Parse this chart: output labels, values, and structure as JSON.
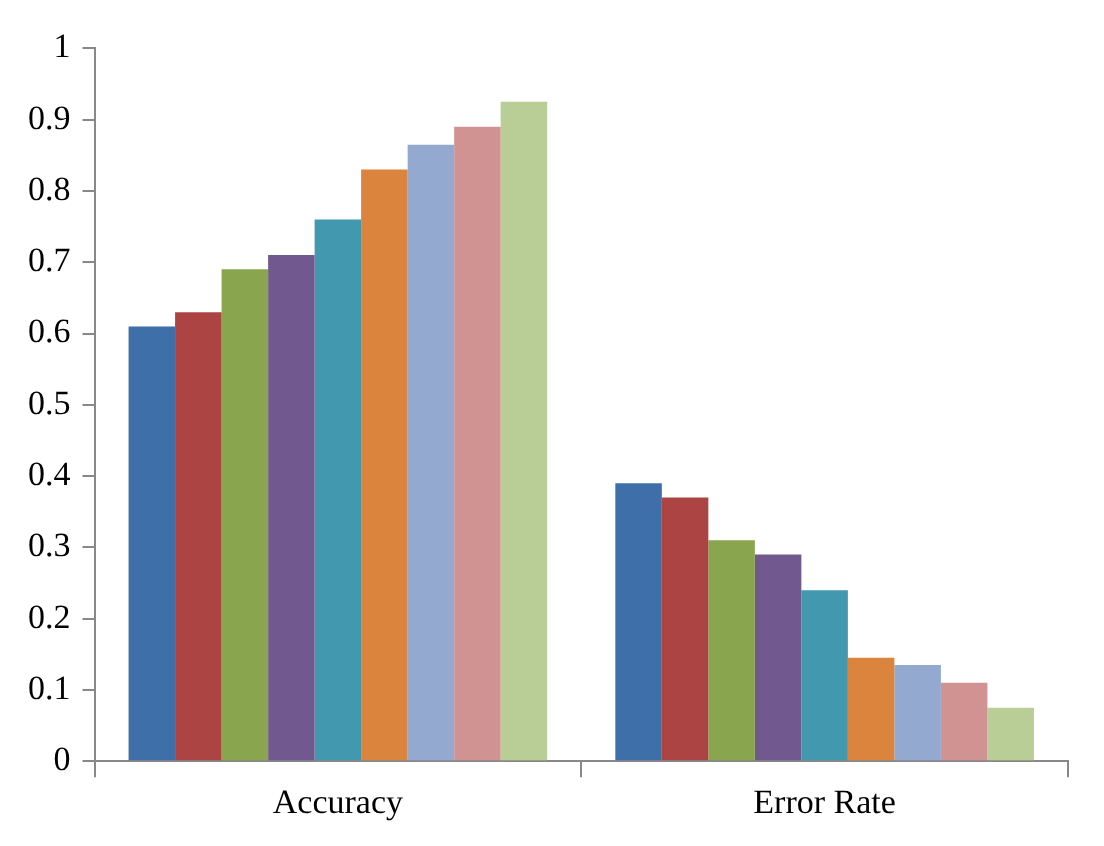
{
  "chart_data": {
    "type": "bar",
    "categories": [
      "Accuracy",
      "Error Rate"
    ],
    "series": [
      {
        "color": "#3e6fa8",
        "values": [
          0.61,
          0.39
        ]
      },
      {
        "color": "#ab4442",
        "values": [
          0.63,
          0.37
        ]
      },
      {
        "color": "#89a54e",
        "values": [
          0.69,
          0.31
        ]
      },
      {
        "color": "#71588f",
        "values": [
          0.71,
          0.29
        ]
      },
      {
        "color": "#4198af",
        "values": [
          0.76,
          0.24
        ]
      },
      {
        "color": "#db843d",
        "values": [
          0.83,
          0.145
        ]
      },
      {
        "color": "#93a9cf",
        "values": [
          0.865,
          0.135
        ]
      },
      {
        "color": "#d19392",
        "values": [
          0.89,
          0.11
        ]
      },
      {
        "color": "#b9cd96",
        "values": [
          0.925,
          0.075
        ]
      }
    ],
    "ylim": [
      0,
      1
    ],
    "yticks": [
      0,
      0.1,
      0.2,
      0.3,
      0.4,
      0.5,
      0.6,
      0.7,
      0.8,
      0.9,
      1
    ],
    "grid": false,
    "legend": false
  }
}
